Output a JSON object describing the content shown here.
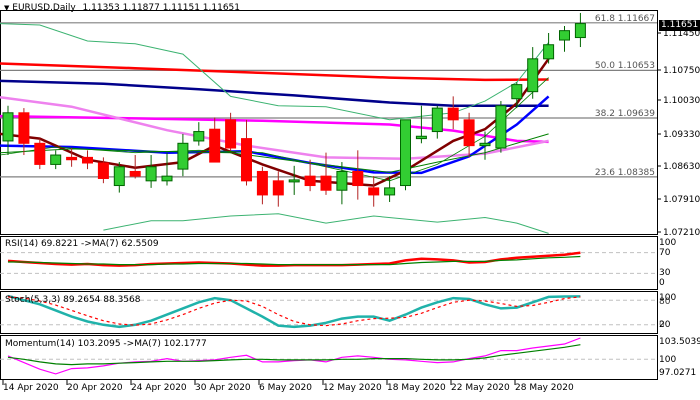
{
  "header": {
    "symbol_label": "EURUSD,Daily",
    "ohlc": "1.11353 1.11877 1.11151 1.11651"
  },
  "price_axis": {
    "current_price": "1.11651",
    "ticks": [
      "1.11450",
      "1.10750",
      "1.10030",
      "1.09330",
      "1.08630",
      "1.07910",
      "1.07210"
    ]
  },
  "fibonacci": [
    {
      "label": "61.8 1.11667"
    },
    {
      "label": "50.0 1.10653"
    },
    {
      "label": "38.2 1.09639"
    },
    {
      "label": "23.6 1.08385"
    }
  ],
  "indicators": {
    "rsi": {
      "label": "RSI(14) 69.8221  ->MA(7) 62.5509",
      "axis": [
        "100",
        "70",
        "30",
        "0"
      ]
    },
    "stoch": {
      "label": "Stoch(5,3,3) 89.2654 88.3568",
      "axis": [
        "100",
        "80",
        "20",
        "0"
      ]
    },
    "momentum": {
      "label": "Momentum(14) 103.2095  ->MA(7) 102.1777",
      "axis": [
        "103.5039",
        "100",
        "97.0271"
      ]
    }
  },
  "x_axis": {
    "labels": [
      "14 Apr 2020",
      "20 Apr 2020",
      "24 Apr 2020",
      "30 Apr 2020",
      "6 May 2020",
      "12 May 2020",
      "18 May 2020",
      "22 May 2020",
      "28 May 2020"
    ]
  },
  "colors": {
    "bull": "#32cd32",
    "bear": "#ff0000",
    "candle_border": "#006400",
    "ma_red": "#ff0000",
    "ma_navy": "#00008b",
    "ma_magenta": "#ff00ff",
    "ma_violet": "#ee82ee",
    "ma_blue": "#0000ff",
    "ma_maroon": "#800000",
    "bollinger": "#3cb371",
    "stoch_main": "#20b2aa",
    "fib_line": "#808080"
  },
  "chart_data": {
    "type": "candlestick",
    "title": "EURUSD,Daily",
    "ohlc_last": {
      "open": 1.11353,
      "high": 1.11877,
      "low": 1.11151,
      "close": 1.11651
    },
    "x": [
      "13 Apr",
      "14 Apr",
      "15 Apr",
      "16 Apr",
      "17 Apr",
      "20 Apr",
      "21 Apr",
      "22 Apr",
      "23 Apr",
      "24 Apr",
      "27 Apr",
      "28 Apr",
      "29 Apr",
      "30 Apr",
      "1 May",
      "4 May",
      "5 May",
      "6 May",
      "7 May",
      "8 May",
      "11 May",
      "12 May",
      "13 May",
      "14 May",
      "15 May",
      "18 May",
      "19 May",
      "20 May",
      "21 May",
      "22 May",
      "25 May",
      "26 May",
      "27 May",
      "28 May",
      "29 May",
      "1 Jun",
      "2 Jun"
    ],
    "candles": [
      {
        "o": 1.0915,
        "h": 1.099,
        "l": 1.0885,
        "c": 1.0975
      },
      {
        "o": 1.0975,
        "h": 1.0985,
        "l": 1.0885,
        "c": 1.091
      },
      {
        "o": 1.091,
        "h": 1.092,
        "l": 1.0855,
        "c": 1.0865
      },
      {
        "o": 1.0865,
        "h": 1.0895,
        "l": 1.0855,
        "c": 1.0885
      },
      {
        "o": 1.088,
        "h": 1.09,
        "l": 1.086,
        "c": 1.0875
      },
      {
        "o": 1.088,
        "h": 1.0895,
        "l": 1.0855,
        "c": 1.0868
      },
      {
        "o": 1.0868,
        "h": 1.088,
        "l": 1.0825,
        "c": 1.0835
      },
      {
        "o": 1.082,
        "h": 1.087,
        "l": 1.0805,
        "c": 1.086
      },
      {
        "o": 1.085,
        "h": 1.0885,
        "l": 1.0835,
        "c": 1.084
      },
      {
        "o": 1.083,
        "h": 1.0885,
        "l": 1.0815,
        "c": 1.086
      },
      {
        "o": 1.083,
        "h": 1.089,
        "l": 1.082,
        "c": 1.084
      },
      {
        "o": 1.0855,
        "h": 1.093,
        "l": 1.084,
        "c": 1.091
      },
      {
        "o": 1.0915,
        "h": 1.0955,
        "l": 1.0905,
        "c": 1.0935
      },
      {
        "o": 1.094,
        "h": 1.0965,
        "l": 1.087,
        "c": 1.087
      },
      {
        "o": 1.096,
        "h": 1.0975,
        "l": 1.0895,
        "c": 1.09
      },
      {
        "o": 1.092,
        "h": 1.096,
        "l": 1.082,
        "c": 1.083
      },
      {
        "o": 1.085,
        "h": 1.086,
        "l": 1.078,
        "c": 1.08
      },
      {
        "o": 1.083,
        "h": 1.085,
        "l": 1.0775,
        "c": 1.08
      },
      {
        "o": 1.0832,
        "h": 1.0862,
        "l": 1.08,
        "c": 1.0832
      },
      {
        "o": 1.084,
        "h": 1.0875,
        "l": 1.0808,
        "c": 1.082
      },
      {
        "o": 1.084,
        "h": 1.089,
        "l": 1.08,
        "c": 1.081
      },
      {
        "o": 1.081,
        "h": 1.087,
        "l": 1.078,
        "c": 1.085
      },
      {
        "o": 1.085,
        "h": 1.0895,
        "l": 1.079,
        "c": 1.082
      },
      {
        "o": 1.0815,
        "h": 1.084,
        "l": 1.0775,
        "c": 1.08
      },
      {
        "o": 1.08,
        "h": 1.084,
        "l": 1.0785,
        "c": 1.0815
      },
      {
        "o": 1.082,
        "h": 1.088,
        "l": 1.081,
        "c": 1.096
      },
      {
        "o": 1.092,
        "h": 1.099,
        "l": 1.091,
        "c": 1.0925
      },
      {
        "o": 1.0935,
        "h": 1.099,
        "l": 1.092,
        "c": 1.0985
      },
      {
        "o": 1.0985,
        "h": 1.101,
        "l": 1.094,
        "c": 1.096
      },
      {
        "o": 1.096,
        "h": 1.0975,
        "l": 1.088,
        "c": 1.0905
      },
      {
        "o": 1.0905,
        "h": 1.0935,
        "l": 1.0875,
        "c": 1.091
      },
      {
        "o": 1.09,
        "h": 1.1,
        "l": 1.089,
        "c": 1.099
      },
      {
        "o": 1.1005,
        "h": 1.104,
        "l": 1.0985,
        "c": 1.1035
      },
      {
        "o": 1.102,
        "h": 1.1115,
        "l": 1.1005,
        "c": 1.109
      },
      {
        "o": 1.109,
        "h": 1.1145,
        "l": 1.108,
        "c": 1.112
      },
      {
        "o": 1.113,
        "h": 1.116,
        "l": 1.1105,
        "c": 1.115
      },
      {
        "o": 1.11353,
        "h": 1.11877,
        "l": 1.11151,
        "c": 1.11651
      }
    ],
    "fibonacci_levels": [
      {
        "level": 61.8,
        "price": 1.11667
      },
      {
        "level": 50.0,
        "price": 1.10653
      },
      {
        "level": 38.2,
        "price": 1.09639
      },
      {
        "level": 23.6,
        "price": 1.08385
      }
    ],
    "y_ticks": [
      1.1145,
      1.1075,
      1.1003,
      1.0933,
      1.0863,
      1.0791,
      1.0721
    ],
    "ylim": [
      1.0718,
      1.1196
    ],
    "subplots": [
      {
        "name": "RSI(14)",
        "value": 69.8221,
        "ma_period": 7,
        "ma_value": 62.5509,
        "levels": [
          30,
          70
        ],
        "ylim": [
          0,
          100
        ]
      },
      {
        "name": "Stoch(5,3,3)",
        "main": 89.2654,
        "signal": 88.3568,
        "levels": [
          20,
          80
        ],
        "ylim": [
          0,
          100
        ]
      },
      {
        "name": "Momentum(14)",
        "value": 103.2095,
        "ma_period": 7,
        "ma_value": 102.1777,
        "level": 100,
        "ylim": [
          97.0271,
          103.5039
        ]
      }
    ],
    "xlabel": "",
    "ylabel": "",
    "grid": false
  }
}
